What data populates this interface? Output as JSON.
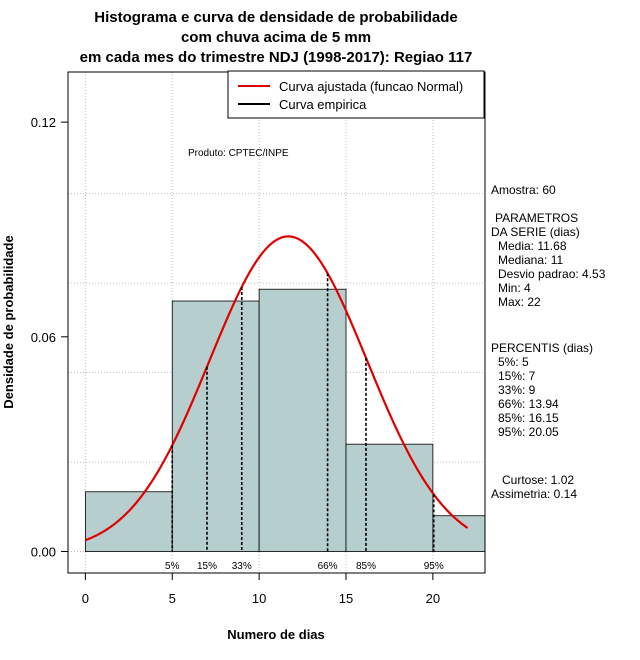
{
  "chart_data": {
    "type": "bar",
    "title_lines": [
      "Histograma e curva de densidade de probabilidade",
      "com chuva acima de 5 mm",
      "em cada mes do trimestre NDJ (1998-2017): Regiao 117"
    ],
    "xlabel": "Numero de dias",
    "ylabel": "Densidade de probabilidade",
    "xlim": [
      -1,
      23
    ],
    "ylim": [
      -0.006,
      0.134
    ],
    "x_ticks": [
      0,
      5,
      10,
      15,
      20
    ],
    "y_ticks": [
      0.0,
      0.06,
      0.12
    ],
    "y_tick_labels": [
      "0.00",
      "0.06",
      "0.12"
    ],
    "grid": true,
    "bar_color": "#b7cece",
    "curve_color": "#e00000",
    "histogram": [
      {
        "x0": 0,
        "x1": 5,
        "density": 0.0167
      },
      {
        "x0": 5,
        "x1": 10,
        "density": 0.07
      },
      {
        "x0": 10,
        "x1": 15,
        "density": 0.0733
      },
      {
        "x0": 15,
        "x1": 20,
        "density": 0.03
      },
      {
        "x0": 20,
        "x1": 23,
        "density": 0.01
      }
    ],
    "normal_fit": {
      "mean": 11.68,
      "sd": 4.53,
      "x_range": [
        0,
        22
      ]
    },
    "percentile_lines": [
      {
        "label": "5%",
        "x": 5
      },
      {
        "label": "15%",
        "x": 7
      },
      {
        "label": "33%",
        "x": 9
      },
      {
        "label": "66%",
        "x": 13.94
      },
      {
        "label": "85%",
        "x": 16.15
      },
      {
        "label": "95%",
        "x": 20.05
      }
    ],
    "legend": {
      "position": "top-right",
      "entries": [
        {
          "label": "Curva ajustada (funcao Normal)",
          "color": "#e00000"
        },
        {
          "label": "Curva empirica",
          "color": "#000000"
        }
      ]
    },
    "annotation": "Produto: CPTEC/INPE"
  },
  "stats": {
    "amostra": "Amostra: 60",
    "param_header_1": "PARAMETROS",
    "param_header_2": "DA SERIE (dias)",
    "media": "Media: 11.68",
    "mediana": "Mediana: 11",
    "desvio": "Desvio padrao: 4.53",
    "min": "Min: 4",
    "max": "Max: 22",
    "perc_header": "PERCENTIS (dias)",
    "p5": "5%: 5",
    "p15": "15%: 7",
    "p33": "33%: 9",
    "p66": "66%: 13.94",
    "p85": "85%: 16.15",
    "p95": "95%: 20.05",
    "curtose": "Curtose: 1.02",
    "assimetria": "Assimetria: 0.14"
  }
}
